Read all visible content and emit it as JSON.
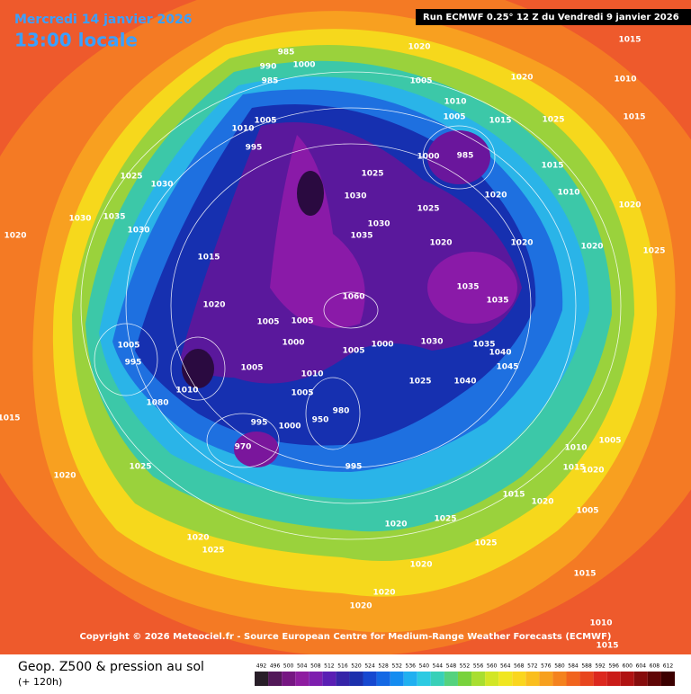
{
  "header": {
    "date": "Mercredi 14 janvier 2026",
    "time": "13:00 locale",
    "run": "Run ECMWF 0.25° 12 Z du Vendredi 9 janvier 2026"
  },
  "copyright": "Copyright © 2026 Meteociel.fr - Source European Centre for Medium-Range Weather Forecasts (ECMWF)",
  "legend": {
    "title": "Geop. Z500 & pression au sol",
    "subtitle": "(+ 120h)",
    "colorbar_labels": [
      "492",
      "496",
      "500",
      "504",
      "508",
      "512",
      "516",
      "520",
      "524",
      "528",
      "532",
      "536",
      "540",
      "544",
      "548",
      "552",
      "556",
      "560",
      "564",
      "568",
      "572",
      "576",
      "580",
      "584",
      "588",
      "592",
      "596",
      "600",
      "604",
      "608",
      "612"
    ]
  },
  "isobar_labels": [
    "985",
    "990",
    "1000",
    "985",
    "1020",
    "1020",
    "1005",
    "1010",
    "1005",
    "1015",
    "1025",
    "1010",
    "1005",
    "995",
    "1000",
    "985",
    "1015",
    "1025",
    "1030",
    "1020",
    "1010",
    "1025",
    "1030",
    "1035",
    "1020",
    "1020",
    "1020",
    "1020",
    "1025",
    "1015",
    "1020",
    "1035",
    "1035",
    "1060",
    "1005",
    "1005",
    "1000",
    "1005",
    "1000",
    "1030",
    "1035",
    "1040",
    "1045",
    "1040",
    "1025",
    "1005",
    "1010",
    "1005",
    "1010",
    "1080",
    "995",
    "1005",
    "980",
    "950",
    "1000",
    "995",
    "970",
    "995",
    "1025",
    "1020",
    "1015",
    "1020",
    "1030",
    "1025",
    "1030",
    "1035",
    "1030",
    "1020",
    "1025",
    "1020",
    "1025",
    "1025",
    "1020",
    "1020",
    "1020",
    "1015",
    "1020",
    "1005",
    "1010",
    "1015",
    "1005",
    "1020",
    "1010",
    "1015",
    "1015",
    "1015",
    "1010",
    "1015"
  ]
}
